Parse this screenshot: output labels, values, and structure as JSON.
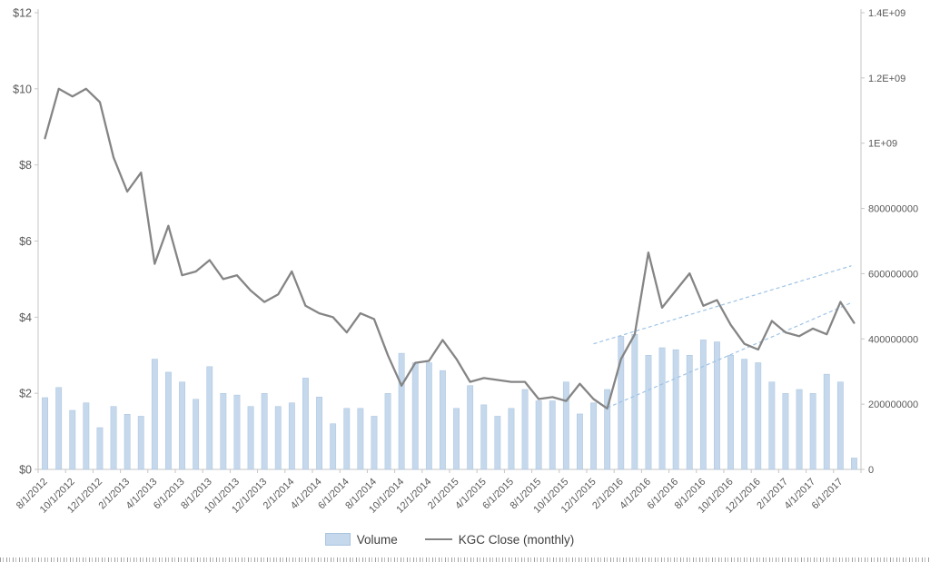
{
  "chart_data": {
    "type": "combo",
    "title": "",
    "grid": false,
    "legend_position": "bottom",
    "left_axis": {
      "min": 0,
      "max": 12,
      "ticks": [
        {
          "label": "$12",
          "value": 12
        },
        {
          "label": "$10",
          "value": 10
        },
        {
          "label": "$8",
          "value": 8
        },
        {
          "label": "$6",
          "value": 6
        },
        {
          "label": "$4",
          "value": 4
        },
        {
          "label": "$2",
          "value": 2
        },
        {
          "label": "$0",
          "value": 0
        }
      ]
    },
    "right_axis": {
      "min": 0,
      "max": 1400000000,
      "ticks": [
        {
          "label": "1.4E+09",
          "value": 1400000000
        },
        {
          "label": "1.2E+09",
          "value": 1200000000
        },
        {
          "label": "1E+09",
          "value": 1000000000
        },
        {
          "label": "800000000",
          "value": 800000000
        },
        {
          "label": "600000000",
          "value": 600000000
        },
        {
          "label": "400000000",
          "value": 400000000
        },
        {
          "label": "200000000",
          "value": 200000000
        },
        {
          "label": "0",
          "value": 0
        }
      ]
    },
    "x_axis": {
      "tick_step": 2,
      "labels": [
        "8/1/2012",
        "10/1/2012",
        "12/1/2012",
        "2/1/2013",
        "4/1/2013",
        "6/1/2013",
        "8/1/2013",
        "10/1/2013",
        "12/1/2013",
        "2/1/2014",
        "4/1/2014",
        "6/1/2014",
        "8/1/2014",
        "10/1/2014",
        "12/1/2014",
        "2/1/2015",
        "4/1/2015",
        "6/1/2015",
        "8/1/2015",
        "10/1/2015",
        "12/1/2015",
        "2/1/2016",
        "4/1/2016",
        "6/1/2016",
        "8/1/2016",
        "10/1/2016",
        "12/1/2016",
        "2/1/2017",
        "4/1/2017",
        "6/1/2017"
      ]
    },
    "series": [
      {
        "name": "Volume",
        "type": "bar",
        "axis": "right",
        "color": "#c5d8ec",
        "border": "#aac4df",
        "values": [
          220000000,
          251000000,
          181000000,
          204000000,
          128000000,
          193000000,
          169000000,
          163000000,
          338000000,
          298000000,
          268000000,
          215000000,
          315000000,
          233000000,
          228000000,
          193000000,
          233000000,
          193000000,
          204000000,
          280000000,
          222000000,
          140000000,
          187000000,
          187000000,
          163000000,
          233000000,
          356000000,
          327000000,
          327000000,
          303000000,
          187000000,
          257000000,
          198000000,
          163000000,
          187000000,
          245000000,
          210000000,
          210000000,
          268000000,
          170000000,
          204000000,
          245000000,
          408000000,
          414000000,
          350000000,
          373000000,
          367000000,
          350000000,
          397000000,
          391000000,
          350000000,
          338000000,
          327000000,
          268000000,
          233000000,
          245000000,
          233000000,
          292000000,
          268000000,
          35000000
        ]
      },
      {
        "name": "KGC Close (monthly)",
        "type": "line",
        "axis": "left",
        "color": "#858585",
        "values": [
          8.7,
          10.0,
          9.8,
          10.0,
          9.65,
          8.2,
          7.3,
          7.8,
          5.4,
          6.4,
          5.1,
          5.2,
          5.5,
          5.0,
          5.1,
          4.7,
          4.4,
          4.6,
          5.2,
          4.3,
          4.1,
          4.0,
          3.6,
          4.1,
          3.95,
          3.0,
          2.2,
          2.8,
          2.85,
          3.4,
          2.9,
          2.3,
          2.4,
          2.35,
          2.3,
          2.3,
          1.85,
          1.9,
          1.8,
          2.25,
          1.85,
          1.6,
          2.9,
          3.55,
          5.7,
          4.25,
          4.7,
          5.15,
          4.3,
          4.45,
          3.8,
          3.3,
          3.15,
          3.9,
          3.6,
          3.5,
          3.7,
          3.55,
          4.4,
          3.85
        ]
      }
    ],
    "trendlines": [
      {
        "axis": "left",
        "from_index": 40,
        "from_value": 3.3,
        "to_index": 58.8,
        "to_value": 5.35,
        "color": "#9dc3e6",
        "dash": "4 3"
      },
      {
        "axis": "left",
        "from_index": 41,
        "from_value": 1.62,
        "to_index": 58.8,
        "to_value": 4.38,
        "color": "#9dc3e6",
        "dash": "4 3"
      }
    ]
  }
}
